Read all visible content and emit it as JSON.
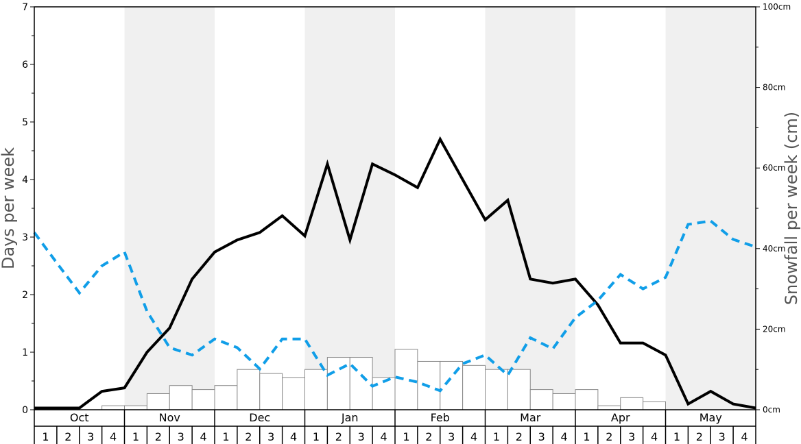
{
  "chart_data": {
    "type": "bar+line",
    "months": [
      "Oct",
      "Nov",
      "Dec",
      "Jan",
      "Feb",
      "Mar",
      "Apr",
      "May"
    ],
    "weeks": [
      "1",
      "2",
      "3",
      "4"
    ],
    "left_axis": {
      "label": "Days per week",
      "ylim": [
        0,
        7
      ],
      "ticks": [
        "0",
        "1",
        "2",
        "3",
        "4",
        "5",
        "6",
        "7"
      ]
    },
    "right_axis": {
      "label": "Snowfall per week (cm)",
      "ylim": [
        0,
        100
      ],
      "ticks": [
        "0cm",
        "20cm",
        "40cm",
        "60cm",
        "80cm",
        "100cm"
      ]
    },
    "series": [
      {
        "type": "bar",
        "axis": "right",
        "values": [
          0,
          0,
          0,
          1.0,
          1.0,
          4.0,
          6.0,
          5.0,
          6.0,
          10.0,
          9.0,
          8.0,
          10.0,
          13.0,
          13.0,
          8.0,
          15.0,
          12.0,
          12.0,
          11.0,
          10.0,
          10.0,
          5.0,
          4.0,
          5.0,
          1.0,
          3.0,
          2.0,
          0,
          0,
          0,
          0
        ]
      },
      {
        "type": "line",
        "style": "solid",
        "axis": "left",
        "values": [
          0.03,
          0.03,
          0.03,
          0.32,
          0.38,
          1.0,
          1.42,
          2.27,
          2.74,
          2.95,
          3.08,
          3.37,
          3.02,
          4.27,
          2.95,
          4.27,
          4.08,
          3.86,
          4.7,
          4.0,
          3.3,
          3.64,
          2.27,
          2.2,
          2.27,
          1.82,
          1.16,
          1.16,
          0.95,
          0.1,
          0.32,
          0.1,
          0.03
        ]
      },
      {
        "type": "line",
        "style": "dashed",
        "axis": "left",
        "values": [
          3.08,
          2.55,
          2.03,
          2.5,
          2.74,
          1.71,
          1.08,
          0.95,
          1.23,
          1.08,
          0.71,
          1.23,
          1.23,
          0.6,
          0.8,
          0.41,
          0.57,
          0.48,
          0.33,
          0.8,
          0.95,
          0.6,
          1.25,
          1.06,
          1.6,
          1.9,
          2.35,
          2.1,
          2.3,
          3.22,
          3.28,
          2.96,
          2.83
        ]
      }
    ],
    "colors": {
      "bar_fill": "#ffffff",
      "bar_stroke": "#888888",
      "solid_line": "#000000",
      "dashed_line": "#109ee8",
      "band": "#f0f0f0"
    }
  }
}
